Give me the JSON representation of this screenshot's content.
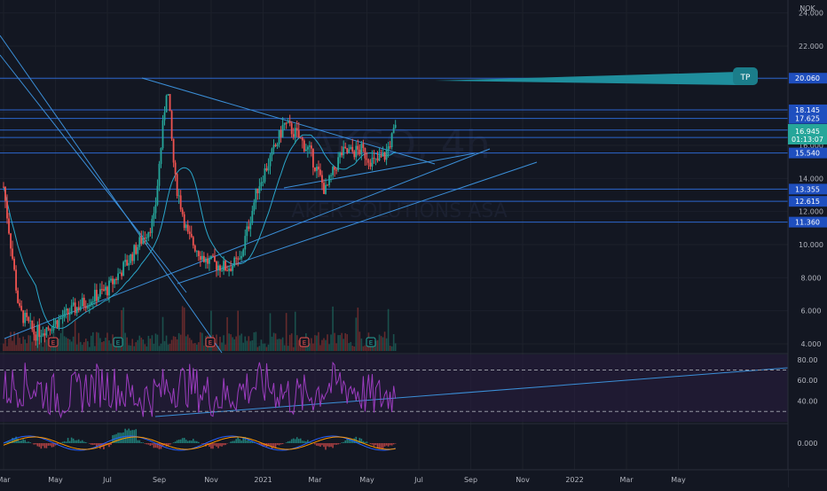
{
  "chart_data": {
    "type": "candlestick",
    "symbol_watermark": "AKSO, 4h",
    "name_watermark": "AKER SOLUTIONS ASA",
    "currency": "NOK",
    "current_price": "16.945",
    "countdown": "01:13:07",
    "x_ticks": [
      "Mar",
      "May",
      "Jul",
      "Sep",
      "Nov",
      "2021",
      "Mar",
      "May",
      "Jul",
      "Sep",
      "Nov",
      "2022",
      "Mar",
      "May"
    ],
    "y_ticks": [
      "24.000",
      "22.000",
      "20.000",
      "18.000",
      "16.000",
      "14.000",
      "12.000",
      "10.000",
      "8.000",
      "6.000",
      "4.000"
    ],
    "ylim": [
      3.4,
      24.3
    ],
    "horizontal_levels": [
      {
        "value": 20.06,
        "label": "20.060"
      },
      {
        "value": 18.145,
        "label": "18.145"
      },
      {
        "value": 17.625,
        "label": "17.625"
      },
      {
        "value": 16.925,
        "label": "16.925"
      },
      {
        "value": 16.475,
        "label": "16.475"
      },
      {
        "value": 15.54,
        "label": "15.540"
      },
      {
        "value": 13.355,
        "label": "13.355"
      },
      {
        "value": 12.615,
        "label": "12.615"
      },
      {
        "value": 11.36,
        "label": "11.360"
      }
    ],
    "tp_label": "TP",
    "earnings_marker": "E",
    "price_anchors": [
      {
        "x": 0.0,
        "y": 13.5
      },
      {
        "x": 0.3,
        "y": 6.0
      },
      {
        "x": 0.6,
        "y": 4.6
      },
      {
        "x": 1.0,
        "y": 5.3
      },
      {
        "x": 1.5,
        "y": 6.4
      },
      {
        "x": 2.0,
        "y": 7.3
      },
      {
        "x": 2.4,
        "y": 9.0
      },
      {
        "x": 2.9,
        "y": 11.5
      },
      {
        "x": 3.15,
        "y": 19.8
      },
      {
        "x": 3.3,
        "y": 14.0
      },
      {
        "x": 3.55,
        "y": 10.5
      },
      {
        "x": 3.9,
        "y": 9.0
      },
      {
        "x": 4.3,
        "y": 8.6
      },
      {
        "x": 4.55,
        "y": 9.0
      },
      {
        "x": 4.9,
        "y": 13.5
      },
      {
        "x": 5.25,
        "y": 16.0
      },
      {
        "x": 5.4,
        "y": 17.3
      },
      {
        "x": 5.6,
        "y": 16.8
      },
      {
        "x": 5.9,
        "y": 15.6
      },
      {
        "x": 6.2,
        "y": 13.2
      },
      {
        "x": 6.5,
        "y": 15.5
      },
      {
        "x": 6.9,
        "y": 15.7
      },
      {
        "x": 7.15,
        "y": 14.9
      },
      {
        "x": 7.35,
        "y": 15.4
      },
      {
        "x": 7.55,
        "y": 17.0
      }
    ],
    "rsi": {
      "ylim": [
        20,
        85
      ],
      "ticks": [
        "80.00",
        "60.00",
        "40.00"
      ],
      "bands": [
        70,
        30
      ]
    },
    "macd": {
      "ticks": [
        "0.000"
      ]
    }
  }
}
